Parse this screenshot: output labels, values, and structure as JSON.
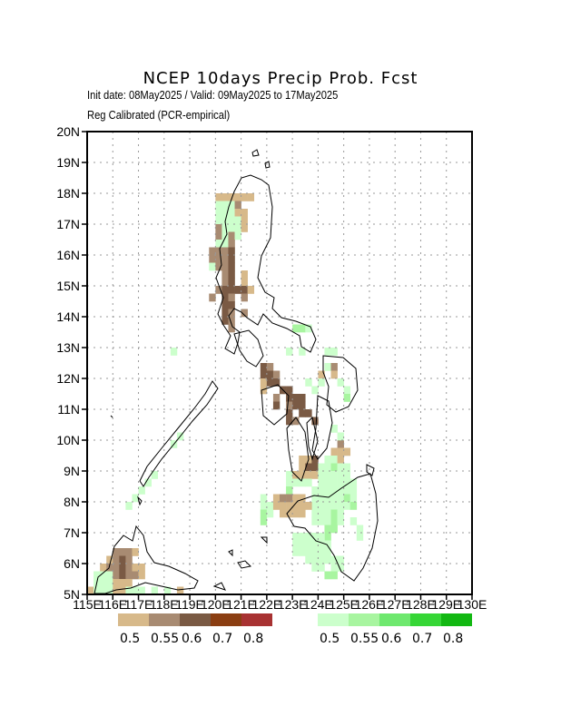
{
  "title": "NCEP  10days  Precip  Prob.  Fcst",
  "subtitle_line1": "Init date: 08May2025 / Valid: 09May2025 to 17May2025",
  "subtitle_line2": "Reg Calibrated (PCR-empirical)",
  "axes": {
    "lat_ticks": [
      "20N",
      "19N",
      "18N",
      "17N",
      "16N",
      "15N",
      "14N",
      "13N",
      "12N",
      "11N",
      "10N",
      "9N",
      "8N",
      "7N",
      "6N",
      "5N"
    ],
    "lon_ticks": [
      "115E",
      "116E",
      "117E",
      "118E",
      "119E",
      "120E",
      "121E",
      "122E",
      "123E",
      "124E",
      "125E",
      "126E",
      "127E",
      "128E",
      "129E",
      "130E"
    ],
    "lat_range": [
      5,
      20
    ],
    "lon_range": [
      115,
      130
    ],
    "grid": "dotted"
  },
  "colors": {
    "dry": [
      "#d7b98a",
      "#a88b72",
      "#7a5a44",
      "#8b3e12",
      "#a83232"
    ],
    "wet": [
      "#ccffcc",
      "#a8f5a0",
      "#6ee86e",
      "#36d636",
      "#12b812"
    ]
  },
  "legend": {
    "dry_labels": [
      "0.5",
      "0.55",
      "0.6",
      "0.7",
      "0.8"
    ],
    "wet_labels": [
      "0.5",
      "0.55",
      "0.6",
      "0.7",
      "0.8"
    ]
  },
  "cells": [
    [
      120,
      17.75,
      "d1"
    ],
    [
      120.25,
      17.75,
      "d1"
    ],
    [
      120.5,
      17.75,
      "d1"
    ],
    [
      120.75,
      17.75,
      "d1"
    ],
    [
      121,
      17.75,
      "d1"
    ],
    [
      121.25,
      17.75,
      "d1"
    ],
    [
      120,
      17.5,
      "w1"
    ],
    [
      120.25,
      17.5,
      "w1"
    ],
    [
      120.5,
      17.5,
      "w1"
    ],
    [
      120.75,
      17.5,
      "d2"
    ],
    [
      120,
      17.25,
      "w1"
    ],
    [
      120.25,
      17.25,
      "w1"
    ],
    [
      120.5,
      17.25,
      "w1"
    ],
    [
      120.75,
      17.25,
      "d1"
    ],
    [
      121,
      17.25,
      "d1"
    ],
    [
      120,
      17,
      "w1"
    ],
    [
      120.25,
      17,
      "w1"
    ],
    [
      120.5,
      17,
      "w1"
    ],
    [
      120.75,
      17,
      "w1"
    ],
    [
      121,
      17,
      "d1"
    ],
    [
      120,
      16.75,
      "d2"
    ],
    [
      120.25,
      16.75,
      "w1"
    ],
    [
      120.5,
      16.75,
      "w1"
    ],
    [
      120.75,
      16.75,
      "w1"
    ],
    [
      121,
      16.75,
      "d1"
    ],
    [
      120,
      16.5,
      "d2"
    ],
    [
      120.25,
      16.5,
      "w1"
    ],
    [
      120.5,
      16.5,
      "d2"
    ],
    [
      120.75,
      16.5,
      "w1"
    ],
    [
      120,
      16.25,
      "w1"
    ],
    [
      120.25,
      16.25,
      "w1"
    ],
    [
      120.5,
      16.25,
      "d2"
    ],
    [
      119.75,
      16,
      "d2"
    ],
    [
      120,
      16,
      "d2"
    ],
    [
      120.25,
      16,
      "d2"
    ],
    [
      120.5,
      16,
      "d3"
    ],
    [
      119.75,
      15.75,
      "d2"
    ],
    [
      120,
      15.75,
      "d2"
    ],
    [
      120.25,
      15.75,
      "d2"
    ],
    [
      120.5,
      15.75,
      "d3"
    ],
    [
      119.75,
      15.5,
      "w1"
    ],
    [
      120,
      15.5,
      "d2"
    ],
    [
      120.25,
      15.5,
      "d2"
    ],
    [
      120.5,
      15.5,
      "d3"
    ],
    [
      120.25,
      15.25,
      "d2"
    ],
    [
      120.5,
      15.25,
      "d3"
    ],
    [
      121,
      15.25,
      "d1"
    ],
    [
      120.25,
      15,
      "d2"
    ],
    [
      120.5,
      15,
      "d3"
    ],
    [
      121,
      15,
      "d1"
    ],
    [
      120,
      14.75,
      "d2"
    ],
    [
      120.25,
      14.75,
      "d3"
    ],
    [
      120.5,
      14.75,
      "d3"
    ],
    [
      120.75,
      14.75,
      "d3"
    ],
    [
      121,
      14.75,
      "d3"
    ],
    [
      121.25,
      14.75,
      "d1"
    ],
    [
      119.75,
      14.5,
      "d2"
    ],
    [
      120.25,
      14.5,
      "d3"
    ],
    [
      120.5,
      14.5,
      "d2"
    ],
    [
      121,
      14.5,
      "d2"
    ],
    [
      120.25,
      14.25,
      "d3"
    ],
    [
      120.5,
      14.25,
      "d3"
    ],
    [
      120.25,
      14,
      "d3"
    ],
    [
      120.5,
      14,
      "d2"
    ],
    [
      121,
      14,
      "d2"
    ],
    [
      120.25,
      13.75,
      "d3"
    ],
    [
      120.5,
      13.75,
      "d2"
    ],
    [
      120.5,
      13.5,
      "d2"
    ],
    [
      123,
      13.5,
      "w2"
    ],
    [
      123.25,
      13.5,
      "w2"
    ],
    [
      123.5,
      13.5,
      "w1"
    ],
    [
      122.75,
      12.75,
      "w1"
    ],
    [
      123.25,
      12.75,
      "w1"
    ],
    [
      124.25,
      12.75,
      "w1"
    ],
    [
      124.5,
      12.75,
      "w1"
    ],
    [
      121.75,
      12.25,
      "d3"
    ],
    [
      122,
      12.25,
      "d2"
    ],
    [
      124.25,
      12.25,
      "w1"
    ],
    [
      124.5,
      12.25,
      "d2"
    ],
    [
      121.75,
      12,
      "d3"
    ],
    [
      122,
      12,
      "d3"
    ],
    [
      122.25,
      12,
      "d2"
    ],
    [
      124,
      12,
      "d1"
    ],
    [
      124.5,
      12,
      "d1"
    ],
    [
      121.75,
      11.75,
      "d1"
    ],
    [
      122,
      11.75,
      "d3"
    ],
    [
      122.25,
      11.75,
      "d3"
    ],
    [
      124,
      11.75,
      "w1"
    ],
    [
      124.75,
      11.75,
      "w1"
    ],
    [
      121.75,
      11.5,
      "d1"
    ],
    [
      122.5,
      11.5,
      "d3"
    ],
    [
      122.75,
      11.5,
      "d3"
    ],
    [
      125,
      11.5,
      "w1"
    ],
    [
      122.25,
      11.25,
      "d2"
    ],
    [
      122.75,
      11.25,
      "d3"
    ],
    [
      123,
      11.25,
      "d3"
    ],
    [
      123.25,
      11.25,
      "d3"
    ],
    [
      125,
      11.25,
      "w2"
    ],
    [
      122.25,
      11,
      "d3"
    ],
    [
      122.75,
      11,
      "d2"
    ],
    [
      123,
      11,
      "d3"
    ],
    [
      123.25,
      11,
      "d3"
    ],
    [
      122.75,
      10.75,
      "d3"
    ],
    [
      123.25,
      10.75,
      "d3"
    ],
    [
      123.5,
      10.75,
      "d3"
    ],
    [
      122.75,
      10.5,
      "d3"
    ],
    [
      123,
      10.5,
      "d2"
    ],
    [
      123.75,
      10.5,
      "d3"
    ],
    [
      124.75,
      9.75,
      "d2"
    ],
    [
      124.5,
      9.5,
      "d1"
    ],
    [
      124.75,
      9.5,
      "d1"
    ],
    [
      125,
      9.5,
      "d1"
    ],
    [
      123.25,
      9.25,
      "d1"
    ],
    [
      123.5,
      9.25,
      "d1"
    ],
    [
      123.75,
      9.25,
      "d3"
    ],
    [
      124.25,
      9.25,
      "w1"
    ],
    [
      124.5,
      9.25,
      "w1"
    ],
    [
      124.75,
      9.25,
      "d1"
    ],
    [
      123.25,
      9,
      "d1"
    ],
    [
      123.5,
      9,
      "d3"
    ],
    [
      123.75,
      9,
      "d3"
    ],
    [
      124,
      9,
      "w1"
    ],
    [
      124.25,
      9,
      "w1"
    ],
    [
      124.5,
      9,
      "w2"
    ],
    [
      124.75,
      9,
      "w1"
    ],
    [
      125,
      9,
      "w1"
    ],
    [
      122.75,
      8.75,
      "w1"
    ],
    [
      123,
      8.75,
      "d1"
    ],
    [
      123.25,
      8.75,
      "d1"
    ],
    [
      123.5,
      8.75,
      "d1"
    ],
    [
      123.75,
      8.75,
      "d1"
    ],
    [
      124,
      8.75,
      "w1"
    ],
    [
      124.25,
      8.75,
      "w1"
    ],
    [
      124.5,
      8.75,
      "w1"
    ],
    [
      124.75,
      8.75,
      "w1"
    ],
    [
      125,
      8.75,
      "w1"
    ],
    [
      122.75,
      8.5,
      "w1"
    ],
    [
      123,
      8.5,
      "w1"
    ],
    [
      123.25,
      8.5,
      "w1"
    ],
    [
      123.5,
      8.5,
      "w1"
    ],
    [
      124,
      8.5,
      "w1"
    ],
    [
      124.25,
      8.5,
      "w1"
    ],
    [
      124.5,
      8.5,
      "w1"
    ],
    [
      124.75,
      8.5,
      "w1"
    ],
    [
      125,
      8.5,
      "w1"
    ],
    [
      125.25,
      8.5,
      "w1"
    ],
    [
      122.75,
      8.25,
      "w2"
    ],
    [
      123.75,
      8.25,
      "w1"
    ],
    [
      124,
      8.25,
      "w1"
    ],
    [
      124.25,
      8.25,
      "w1"
    ],
    [
      124.5,
      8.25,
      "w1"
    ],
    [
      124.75,
      8.25,
      "w1"
    ],
    [
      125,
      8.25,
      "w1"
    ],
    [
      125.25,
      8.25,
      "w1"
    ],
    [
      123.75,
      8,
      "w1"
    ],
    [
      124,
      8,
      "w1"
    ],
    [
      124.25,
      8,
      "w1"
    ],
    [
      124.5,
      8,
      "w1"
    ],
    [
      124.75,
      8,
      "w1"
    ],
    [
      125,
      8,
      "w2"
    ],
    [
      125.25,
      8,
      "w1"
    ],
    [
      123.75,
      7.75,
      "w1"
    ],
    [
      124,
      7.75,
      "w1"
    ],
    [
      124.25,
      7.75,
      "w1"
    ],
    [
      124.5,
      7.75,
      "w1"
    ],
    [
      124.75,
      7.75,
      "w1"
    ],
    [
      125,
      7.75,
      "w1"
    ],
    [
      125.25,
      7.75,
      "w2"
    ],
    [
      123.75,
      7.5,
      "w1"
    ],
    [
      124,
      7.5,
      "w1"
    ],
    [
      124.25,
      7.5,
      "w1"
    ],
    [
      124.5,
      7.5,
      "w2"
    ],
    [
      124.75,
      7.5,
      "w1"
    ],
    [
      123.75,
      7.25,
      "w1"
    ],
    [
      124,
      7.25,
      "w1"
    ],
    [
      124.25,
      7.25,
      "w1"
    ],
    [
      124.5,
      7.25,
      "w2"
    ],
    [
      124.75,
      7.25,
      "w1"
    ],
    [
      124.25,
      7,
      "w2"
    ],
    [
      124.5,
      7,
      "w2"
    ],
    [
      124.25,
      6.75,
      "w2"
    ],
    [
      116,
      6.25,
      "d2"
    ],
    [
      116.25,
      6.25,
      "d2"
    ],
    [
      116.5,
      6.25,
      "d2"
    ],
    [
      116.75,
      6.25,
      "d1"
    ],
    [
      115.75,
      6,
      "d1"
    ],
    [
      116,
      6,
      "d2"
    ],
    [
      116.25,
      6,
      "d3"
    ],
    [
      116.5,
      6,
      "d2"
    ],
    [
      115.5,
      5.75,
      "d1"
    ],
    [
      115.75,
      5.75,
      "d2"
    ],
    [
      116,
      5.75,
      "d2"
    ],
    [
      116.25,
      5.75,
      "d3"
    ],
    [
      116.5,
      5.75,
      "d2"
    ],
    [
      116.75,
      5.75,
      "d1"
    ],
    [
      117,
      5.75,
      "d1"
    ],
    [
      115.25,
      5.5,
      "w1"
    ],
    [
      115.5,
      5.5,
      "w1"
    ],
    [
      115.75,
      5.5,
      "w1"
    ],
    [
      116,
      5.5,
      "d2"
    ],
    [
      116.25,
      5.5,
      "d3"
    ],
    [
      116.5,
      5.5,
      "d2"
    ],
    [
      116.75,
      5.5,
      "d2"
    ],
    [
      117,
      5.5,
      "d1"
    ],
    [
      115.25,
      5.25,
      "w1"
    ],
    [
      115.5,
      5.25,
      "w1"
    ],
    [
      115.75,
      5.25,
      "w1"
    ],
    [
      116,
      5.25,
      "d1"
    ],
    [
      116.25,
      5.25,
      "d1"
    ],
    [
      116.5,
      5.25,
      "d1"
    ],
    [
      115,
      5,
      "d1"
    ],
    [
      115.25,
      5,
      "w1"
    ],
    [
      115.5,
      5,
      "w1"
    ],
    [
      115.75,
      5,
      "w1"
    ],
    [
      116,
      5,
      "d1"
    ],
    [
      116.25,
      5,
      "d1"
    ],
    [
      116.5,
      5,
      "w1"
    ],
    [
      116.75,
      5,
      "w1"
    ],
    [
      117,
      5,
      "w1"
    ],
    [
      117.5,
      5,
      "w1"
    ],
    [
      118,
      5,
      "w1"
    ],
    [
      118.5,
      5,
      "d1"
    ],
    [
      118.25,
      12.75,
      "w1"
    ],
    [
      118.5,
      10,
      "w1"
    ],
    [
      118.25,
      9.75,
      "w1"
    ],
    [
      117.25,
      8.5,
      "w1"
    ],
    [
      117.5,
      8.75,
      "w1"
    ],
    [
      117,
      8.25,
      "w1"
    ],
    [
      116.75,
      8,
      "w1"
    ],
    [
      116.5,
      7.75,
      "w1"
    ],
    [
      123.5,
      11.75,
      "w1"
    ],
    [
      123.75,
      11.5,
      "w1"
    ],
    [
      124.5,
      10.25,
      "w1"
    ],
    [
      124.75,
      10,
      "w1"
    ],
    [
      125.25,
      7.25,
      "w1"
    ],
    [
      125.5,
      7,
      "w1"
    ],
    [
      125.5,
      6.75,
      "w1"
    ],
    [
      124.5,
      6,
      "w1"
    ],
    [
      124.75,
      6,
      "w1"
    ],
    [
      124.5,
      5.75,
      "w1"
    ],
    [
      124.75,
      5.75,
      "w1"
    ],
    [
      124.5,
      5.5,
      "w2"
    ],
    [
      124.25,
      5.5,
      "w2"
    ],
    [
      123,
      6.5,
      "w1"
    ],
    [
      123.25,
      6.5,
      "w1"
    ],
    [
      123.5,
      6.25,
      "w1"
    ],
    [
      123.75,
      6.25,
      "w1"
    ],
    [
      123.25,
      6.25,
      "w1"
    ],
    [
      123.5,
      6,
      "w1"
    ],
    [
      123.75,
      6,
      "w1"
    ],
    [
      123,
      6.25,
      "w1"
    ],
    [
      123.5,
      6.5,
      "w1"
    ],
    [
      123.75,
      6.5,
      "w1"
    ],
    [
      123.75,
      6.75,
      "w1"
    ],
    [
      124,
      6.75,
      "w1"
    ],
    [
      124,
      6.5,
      "w1"
    ],
    [
      124,
      6.25,
      "w1"
    ],
    [
      124,
      6,
      "w1"
    ],
    [
      123.75,
      5.75,
      "w1"
    ],
    [
      124,
      5.75,
      "w1"
    ],
    [
      124.25,
      6,
      "w1"
    ],
    [
      124.25,
      6.25,
      "w1"
    ],
    [
      124.25,
      6.5,
      "w1"
    ],
    [
      123.25,
      6.75,
      "w1"
    ],
    [
      123,
      6.75,
      "w1"
    ],
    [
      123.5,
      6.75,
      "w1"
    ],
    [
      121.75,
      8,
      "w1"
    ],
    [
      121.75,
      7.75,
      "w1"
    ],
    [
      122,
      7.75,
      "w1"
    ],
    [
      121.75,
      7.5,
      "w2"
    ],
    [
      122,
      7.5,
      "w1"
    ],
    [
      121.75,
      7.25,
      "w2"
    ],
    [
      122.25,
      7.75,
      "d1"
    ],
    [
      122.5,
      7.75,
      "d1"
    ],
    [
      122.75,
      7.75,
      "d1"
    ],
    [
      123,
      7.75,
      "d1"
    ],
    [
      123.25,
      7.75,
      "d1"
    ],
    [
      123.5,
      7.75,
      "d1"
    ],
    [
      122.25,
      8,
      "d1"
    ],
    [
      122.5,
      8,
      "d2"
    ],
    [
      122.75,
      8,
      "d2"
    ],
    [
      123,
      8,
      "d1"
    ],
    [
      123.25,
      8,
      "d1"
    ],
    [
      122.5,
      7.5,
      "d1"
    ],
    [
      122.75,
      7.5,
      "d1"
    ],
    [
      123,
      7.5,
      "d1"
    ],
    [
      123.25,
      7.5,
      "d1"
    ]
  ]
}
